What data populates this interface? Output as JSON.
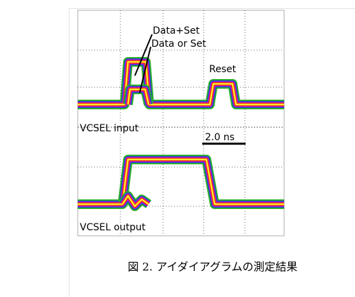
{
  "figure": {
    "annotations": {
      "data_set": "Data+Set",
      "data_or_set": "Data or Set",
      "reset": "Reset",
      "vcsel_input": "VCSEL input",
      "time_scale": "2.0 ns",
      "vcsel_output": "VCSEL output"
    },
    "caption": "図 2. アイダイアグラムの測定結果"
  }
}
